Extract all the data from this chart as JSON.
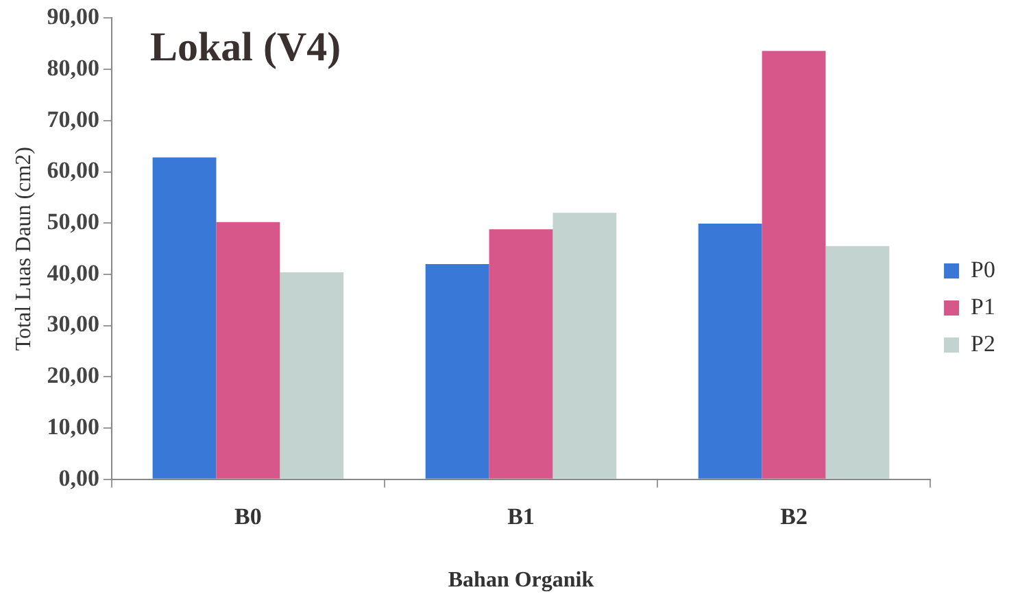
{
  "chart_data": {
    "type": "bar",
    "title": "Lokal (V4)",
    "xlabel": "Bahan Organik",
    "ylabel": "Total Luas Daun (cm2)",
    "categories": [
      "B0",
      "B1",
      "B2"
    ],
    "series": [
      {
        "name": "P0",
        "color": "#3a78d8",
        "values": [
          62.8,
          42.0,
          49.9
        ]
      },
      {
        "name": "P1",
        "color": "#d8578a",
        "values": [
          50.2,
          48.8,
          83.6
        ]
      },
      {
        "name": "P2",
        "color": "#c3d3cf",
        "values": [
          40.4,
          52.0,
          45.5
        ]
      }
    ],
    "ylim": [
      0,
      90
    ],
    "yticks": [
      {
        "value": 0,
        "label": "0,00"
      },
      {
        "value": 10,
        "label": "10,00"
      },
      {
        "value": 20,
        "label": "20,00"
      },
      {
        "value": 30,
        "label": "30,00"
      },
      {
        "value": 40,
        "label": "40,00"
      },
      {
        "value": 50,
        "label": "50,00"
      },
      {
        "value": 60,
        "label": "60,00"
      },
      {
        "value": 70,
        "label": "70,00"
      },
      {
        "value": 80,
        "label": "80,00"
      },
      {
        "value": 90,
        "label": "90,00"
      }
    ],
    "grid": false,
    "legend": "right"
  }
}
